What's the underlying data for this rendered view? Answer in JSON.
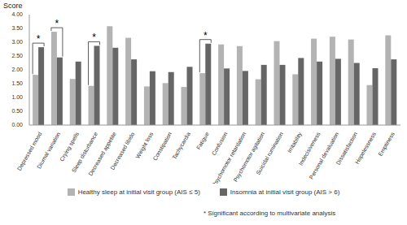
{
  "chart_data": {
    "type": "bar",
    "y_label": "Score",
    "categories": [
      "Depressed mood",
      "Diurnal variation",
      "Crying spells",
      "Sleep disturbance",
      "Decreased appetite",
      "Decreased libido",
      "Weight loss",
      "Constipation",
      "Tachycardia",
      "Fatigue",
      "Confusion",
      "Psychomotor retardation",
      "Psychomotor agitation",
      "Suicidal rumination",
      "Irritability",
      "Indecisiveness",
      "Personal devaluation",
      "Dissatisfaction",
      "Hopelessness",
      "Emptiness"
    ],
    "series": [
      {
        "name": "Healthy sleep at initial visit group (AIS ≤ 5)",
        "color": "#b3b3b3",
        "values": [
          1.82,
          3.38,
          1.67,
          1.42,
          3.58,
          3.16,
          1.4,
          1.52,
          1.38,
          1.88,
          2.92,
          2.86,
          1.66,
          3.04,
          1.84,
          3.13,
          3.2,
          3.1,
          1.45,
          3.25
        ]
      },
      {
        "name": "Insomnia at initial visit group (AIS > 6)",
        "color": "#666666",
        "values": [
          2.82,
          2.45,
          2.3,
          2.87,
          2.8,
          2.38,
          1.95,
          1.92,
          2.11,
          2.95,
          2.05,
          1.96,
          2.18,
          2.18,
          2.43,
          2.3,
          2.4,
          2.25,
          2.06,
          2.38
        ]
      }
    ],
    "ylim": [
      0,
      4
    ],
    "yticks": [
      {
        "value": 0,
        "label": "0.00"
      },
      {
        "value": 0.5,
        "label": "0.50"
      },
      {
        "value": 1,
        "label": "1.00"
      },
      {
        "value": 1.5,
        "label": "1.50"
      },
      {
        "value": 2,
        "label": "2.00"
      },
      {
        "value": 2.5,
        "label": "2.50"
      },
      {
        "value": 3,
        "label": "3.00"
      },
      {
        "value": 3.5,
        "label": "3.50"
      },
      {
        "value": 4,
        "label": "4.00"
      }
    ],
    "grid": false,
    "legend": "bottom",
    "annotations": [
      {
        "category": "Depressed mood",
        "text": "*"
      },
      {
        "category": "Diurnal variation",
        "text": "*"
      },
      {
        "category": "Sleep disturbance",
        "text": "*"
      },
      {
        "category": "Fatigue",
        "text": "*"
      }
    ],
    "note": "* Significant according to multivariate analysis"
  }
}
